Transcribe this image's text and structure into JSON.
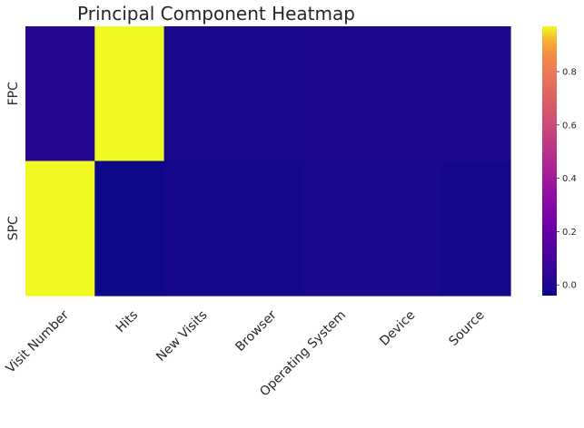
{
  "chart_data": {
    "type": "heatmap",
    "title": "Principal Component Heatmap",
    "x_categories": [
      "Visit Number",
      "Hits",
      "New Visits",
      "Browser",
      "Operating System",
      "Device",
      "Source"
    ],
    "y_categories": [
      "FPC",
      "SPC"
    ],
    "values": [
      [
        0.02,
        0.97,
        -0.01,
        -0.01,
        0.0,
        0.0,
        0.0
      ],
      [
        0.97,
        -0.04,
        -0.02,
        -0.02,
        -0.01,
        -0.01,
        -0.02
      ]
    ],
    "colormap": "plasma",
    "colorbar": {
      "range": [
        -0.04,
        0.97
      ],
      "ticks": [
        0.0,
        0.2,
        0.4,
        0.6,
        0.8
      ],
      "tick_labels": [
        "0.0",
        "0.2",
        "0.4",
        "0.6",
        "0.8"
      ]
    }
  }
}
